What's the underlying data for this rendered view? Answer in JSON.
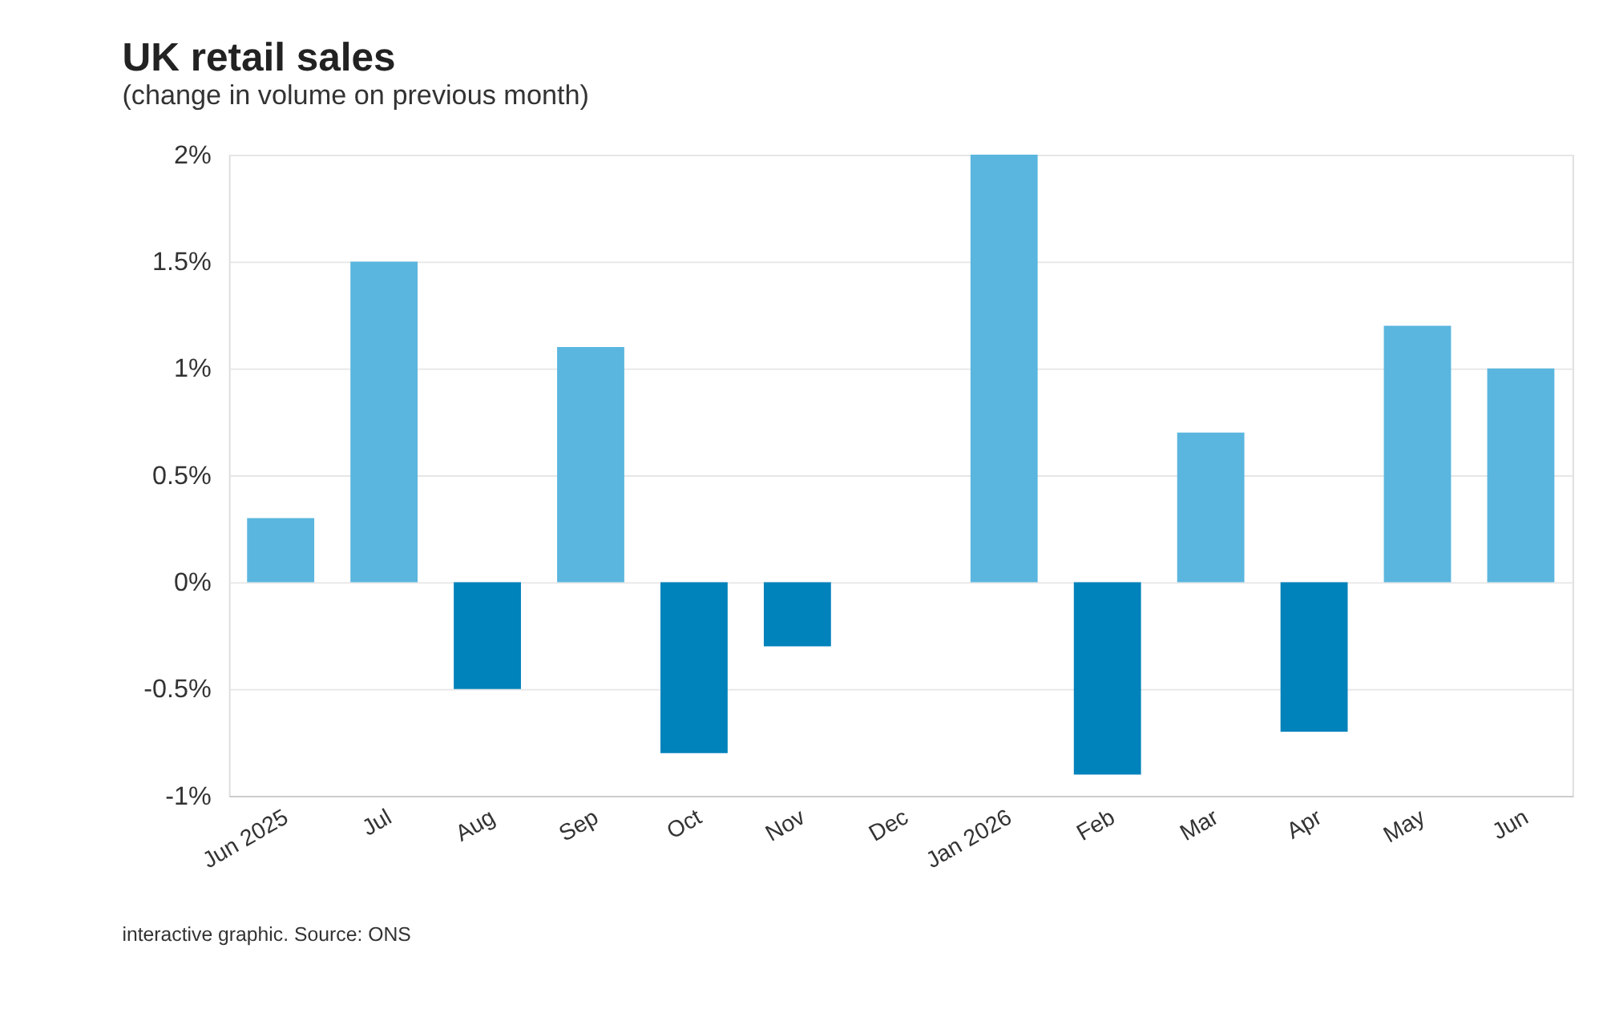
{
  "chart_data": {
    "type": "bar",
    "title": "UK retail sales",
    "subtitle": "(change in volume on previous month)",
    "categories": [
      "Jun 2025",
      "Jul",
      "Aug",
      "Sep",
      "Oct",
      "Nov",
      "Dec",
      "Jan 2026",
      "Feb",
      "Mar",
      "Apr",
      "May",
      "Jun"
    ],
    "values": [
      0.3,
      1.5,
      -0.5,
      1.1,
      -0.8,
      -0.3,
      0,
      2.0,
      -0.9,
      0.7,
      -0.7,
      1.2,
      1.0
    ],
    "colors": [
      "#5ab6de",
      "#5ab6de",
      "#0082bb",
      "#5ab6de",
      "#0082bb",
      "#0082bb",
      "#5ab6de",
      "#5ab6de",
      "#0082bb",
      "#5ab6de",
      "#0082bb",
      "#5ab6de",
      "#5ab6de"
    ],
    "ylim": [
      -1,
      2
    ],
    "yticks": [
      {
        "value": -1,
        "label": "-1%"
      },
      {
        "value": -0.5,
        "label": "-0.5%"
      },
      {
        "value": 0,
        "label": "0%"
      },
      {
        "value": 0.5,
        "label": "0.5%"
      },
      {
        "value": 1,
        "label": "1%"
      },
      {
        "value": 1.5,
        "label": "1.5%"
      },
      {
        "value": 2,
        "label": "2%"
      }
    ],
    "grid": "y",
    "annotations": [
      "interactive graphic. Source: ONS"
    ]
  }
}
